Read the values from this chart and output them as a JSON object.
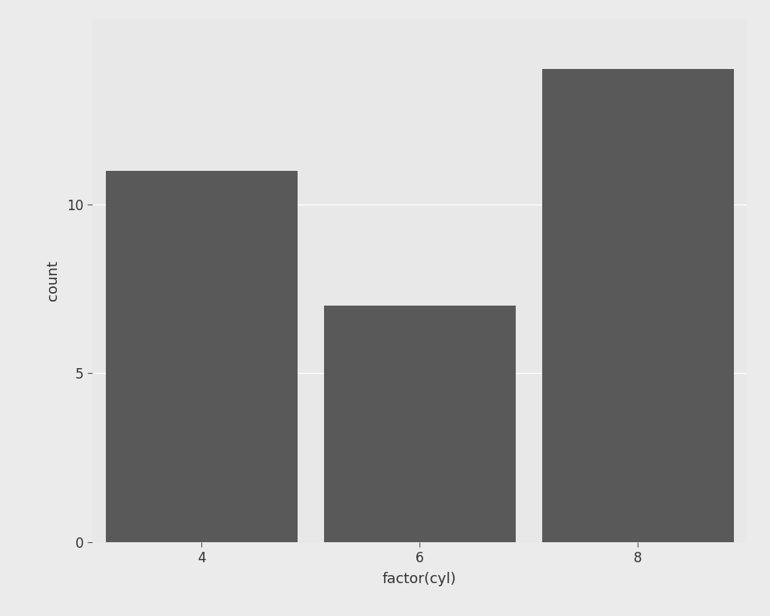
{
  "categories": [
    "4",
    "6",
    "8"
  ],
  "values": [
    11,
    7,
    14
  ],
  "bar_color": "#595959",
  "background_color": "#EBEBEB",
  "panel_background": "#E8E8E8",
  "grid_color": "#FFFFFF",
  "xlabel": "factor(cyl)",
  "ylabel": "count",
  "ylim": [
    0,
    15.5
  ],
  "yticks": [
    0,
    5,
    10
  ],
  "xlabel_fontsize": 13,
  "ylabel_fontsize": 13,
  "tick_fontsize": 12,
  "bar_width": 0.88,
  "figsize": [
    9.6,
    7.68
  ],
  "dpi": 100
}
